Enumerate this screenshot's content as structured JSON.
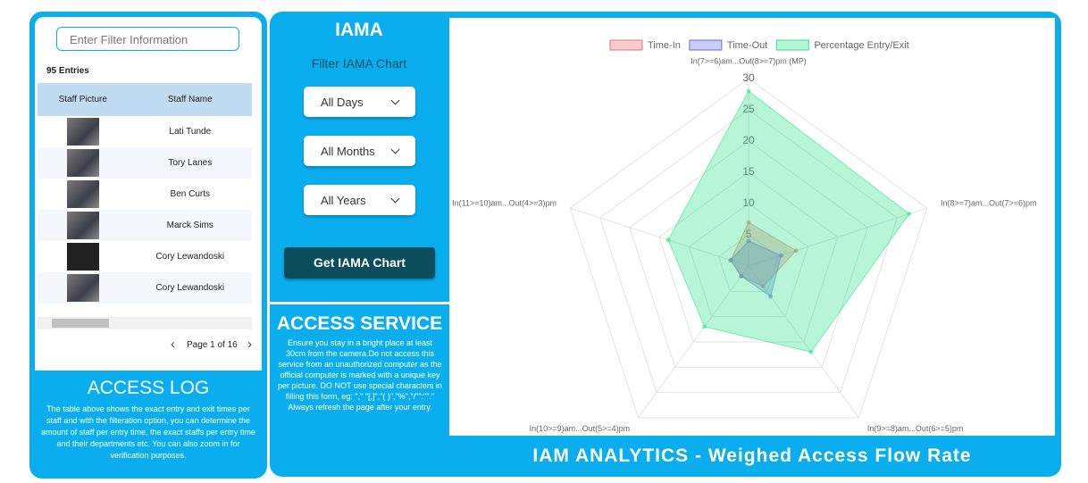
{
  "access_log": {
    "filter_placeholder": "Enter Filter Information",
    "entries": "95 Entries",
    "table": {
      "headers": [
        "Staff Picture",
        "Staff Name"
      ],
      "rows": [
        "Lati Tunde",
        "Tory Lanes",
        "Ben Curts",
        "Marck Sims",
        "Cory Lewandoski",
        "Cory Lewandoski"
      ]
    },
    "pagination": "Page 1 of 16",
    "title": "ACCESS LOG",
    "description": "The table above shows the exact entry and exit times per staff and with the filteration option, you can determine the amount of staff per entry time, the exact staffs per entry time and their departments etc. You can also zoom in for verification purposes."
  },
  "filters": {
    "title": "IAMA",
    "subtitle": "Filter IAMA Chart",
    "days": "All Days",
    "months": "All Months",
    "years": "All Years",
    "button": "Get IAMA Chart"
  },
  "access_service": {
    "title": "ACCESS SERVICE",
    "description": "Ensure you stay in a bright place at least 30cm from the camera.Do not access this service from an unauthorized computer as the official computer is marked with a unique key per picture. DO NOT use special characters in filling this form, eg: \",\" \"[,]\",\"( )\",\"%\",\"/\"\":\"\".\"",
    "note": "Always refresh the page after your entry."
  },
  "chart_data": {
    "type": "radar",
    "title": "IAM ANALYTICS - Weighed Access Flow Rate",
    "categories": [
      "In(7>=6)am...Out(8>=7)pm (MP)",
      "In(8>=7)am...Out(7>=6)pm",
      "In(9>=8)am...Out(6>=5)pm",
      "In(10>=9)am...Out(5>=4)pm",
      "In(11>=10)am...Out(4>=3)pm"
    ],
    "series": [
      {
        "name": "Time-In",
        "color": "#e8736f",
        "values": [
          7,
          8,
          4,
          2,
          3
        ]
      },
      {
        "name": "Time-Out",
        "color": "#6c6ce0",
        "values": [
          4,
          5.5,
          6,
          2,
          3
        ]
      },
      {
        "name": "Percentage Entry/Exit",
        "color": "#2ee68a",
        "values": [
          28,
          27,
          17,
          12,
          13.5
        ]
      }
    ],
    "ylim": [
      0,
      30
    ],
    "yticks": [
      5,
      10,
      15,
      20,
      25,
      30
    ],
    "grid": true
  }
}
